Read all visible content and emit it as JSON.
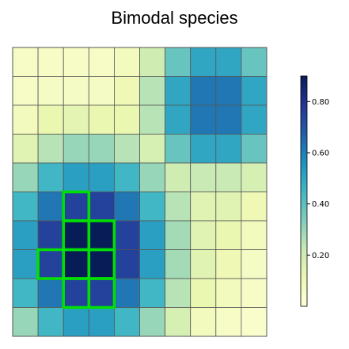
{
  "chart_data": {
    "type": "heatmap",
    "title": "Bimodal species",
    "xlabel": "",
    "ylabel": "",
    "colorscale": "YlGnBu",
    "colorbar": {
      "range": [
        0,
        0.9
      ],
      "ticks": [
        0.2,
        0.4,
        0.6,
        0.8
      ],
      "tick_labels": [
        "0.20",
        "0.40",
        "0.60",
        "0.80"
      ],
      "placement": "right"
    },
    "values": [
      [
        0.05,
        0.05,
        0.05,
        0.05,
        0.08,
        0.2,
        0.38,
        0.5,
        0.5,
        0.38
      ],
      [
        0.05,
        0.06,
        0.06,
        0.06,
        0.1,
        0.25,
        0.5,
        0.62,
        0.62,
        0.5
      ],
      [
        0.08,
        0.12,
        0.14,
        0.12,
        0.12,
        0.25,
        0.5,
        0.62,
        0.62,
        0.5
      ],
      [
        0.15,
        0.25,
        0.3,
        0.3,
        0.25,
        0.18,
        0.38,
        0.5,
        0.5,
        0.38
      ],
      [
        0.3,
        0.45,
        0.52,
        0.52,
        0.45,
        0.3,
        0.2,
        0.22,
        0.22,
        0.18
      ],
      [
        0.45,
        0.62,
        0.75,
        0.75,
        0.62,
        0.45,
        0.25,
        0.15,
        0.15,
        0.1
      ],
      [
        0.52,
        0.75,
        0.9,
        0.9,
        0.75,
        0.52,
        0.28,
        0.15,
        0.12,
        0.08
      ],
      [
        0.52,
        0.75,
        0.9,
        0.9,
        0.75,
        0.52,
        0.28,
        0.15,
        0.1,
        0.06
      ],
      [
        0.45,
        0.62,
        0.75,
        0.75,
        0.62,
        0.45,
        0.25,
        0.12,
        0.08,
        0.05
      ],
      [
        0.3,
        0.45,
        0.52,
        0.52,
        0.45,
        0.3,
        0.18,
        0.08,
        0.05,
        0.04
      ]
    ],
    "highlighted_cells": [
      [
        5,
        2
      ],
      [
        6,
        2
      ],
      [
        6,
        3
      ],
      [
        7,
        1
      ],
      [
        7,
        2
      ],
      [
        7,
        3
      ],
      [
        8,
        2
      ],
      [
        8,
        3
      ]
    ],
    "highlight_color": "#00e000",
    "grid": true
  }
}
